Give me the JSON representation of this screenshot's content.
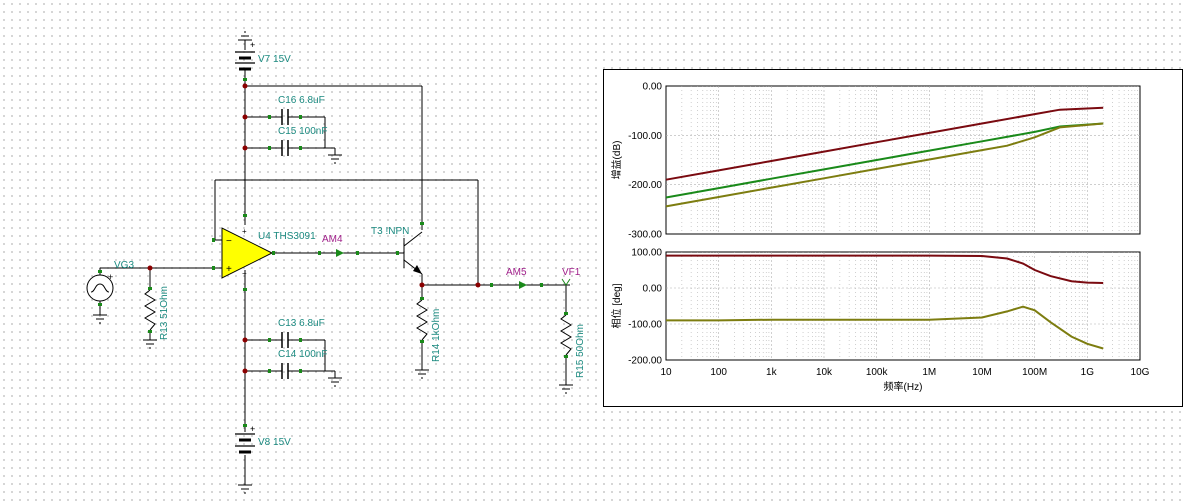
{
  "schematic": {
    "labels": {
      "v7": "V7 15V",
      "v8": "V8 15V",
      "c16": "C16 6.8uF",
      "c15": "C15 100nF",
      "c13": "C13 6.8uF",
      "c14": "C14 100nF",
      "u4": "U4 THS3091",
      "am4": "AM4",
      "t3": "T3 !NPN",
      "vg3": "VG3",
      "r13": "R13 51Ohm",
      "r14": "R14 1kOhm",
      "am5": "AM5",
      "vf1": "VF1",
      "r15": "R15 50Ohm",
      "plus": "+",
      "minus": "−"
    },
    "colors": {
      "wire": "#000000",
      "opamp_fill": "#ffff00",
      "component": "#1b8a80",
      "meter": "#a0208a",
      "node": "#8b0000"
    }
  },
  "chart_data": [
    {
      "type": "line",
      "xscale": "log",
      "xlim": [
        10,
        10000000000
      ],
      "ylim": [
        -300,
        0
      ],
      "ylabel": "增益(dB)",
      "yticks": [
        "0.00",
        "-100.00",
        "-200.00",
        "-300.00"
      ],
      "grid": true,
      "series": [
        {
          "color": "#7a0a10",
          "x": [
            10,
            100,
            1000,
            10000,
            100000,
            1000000,
            10000000,
            100000000,
            300000000,
            2000000000
          ],
          "y": [
            -190,
            -171,
            -152,
            -133,
            -114,
            -95,
            -76,
            -57,
            -48,
            -44
          ]
        },
        {
          "color": "#1a8a1a",
          "x": [
            10,
            100,
            1000,
            10000,
            100000,
            1000000,
            10000000,
            100000000,
            300000000,
            2000000000
          ],
          "y": [
            -226,
            -207,
            -188,
            -169,
            -150,
            -131,
            -112,
            -93,
            -82,
            -76
          ]
        },
        {
          "color": "#7d7d10",
          "x": [
            10,
            100,
            1000,
            10000,
            100000,
            1000000,
            10000000,
            30000000,
            100000000,
            300000000,
            2000000000
          ],
          "y": [
            -244,
            -225,
            -206,
            -187,
            -168,
            -149,
            -130,
            -121,
            -104,
            -84,
            -76
          ]
        }
      ]
    },
    {
      "type": "line",
      "xscale": "log",
      "xlim": [
        10,
        10000000000
      ],
      "ylim": [
        -200,
        100
      ],
      "ylabel": "相位 [deg]",
      "xlabel": "频率(Hz)",
      "yticks": [
        "100.00",
        "0.00",
        "-100.00",
        "-200.00"
      ],
      "xticks": [
        "10",
        "100",
        "1k",
        "10k",
        "100k",
        "1M",
        "10M",
        "100M",
        "1G",
        "10G"
      ],
      "grid": true,
      "series": [
        {
          "color": "#7a0a10",
          "x": [
            10,
            1000000,
            10000000,
            30000000,
            60000000,
            100000000,
            200000000,
            500000000,
            1000000000,
            2000000000
          ],
          "y": [
            90,
            90,
            89,
            82,
            68,
            50,
            33,
            19,
            15,
            14
          ]
        },
        {
          "color": "#7d7d10",
          "x": [
            10,
            100,
            1000,
            10000,
            1000000,
            10000000,
            30000000,
            60000000,
            100000000,
            200000000,
            500000000,
            1000000000,
            2000000000
          ],
          "y": [
            -90,
            -90,
            -88,
            -88,
            -88,
            -82,
            -65,
            -52,
            -62,
            -95,
            -135,
            -155,
            -168
          ]
        }
      ]
    }
  ]
}
